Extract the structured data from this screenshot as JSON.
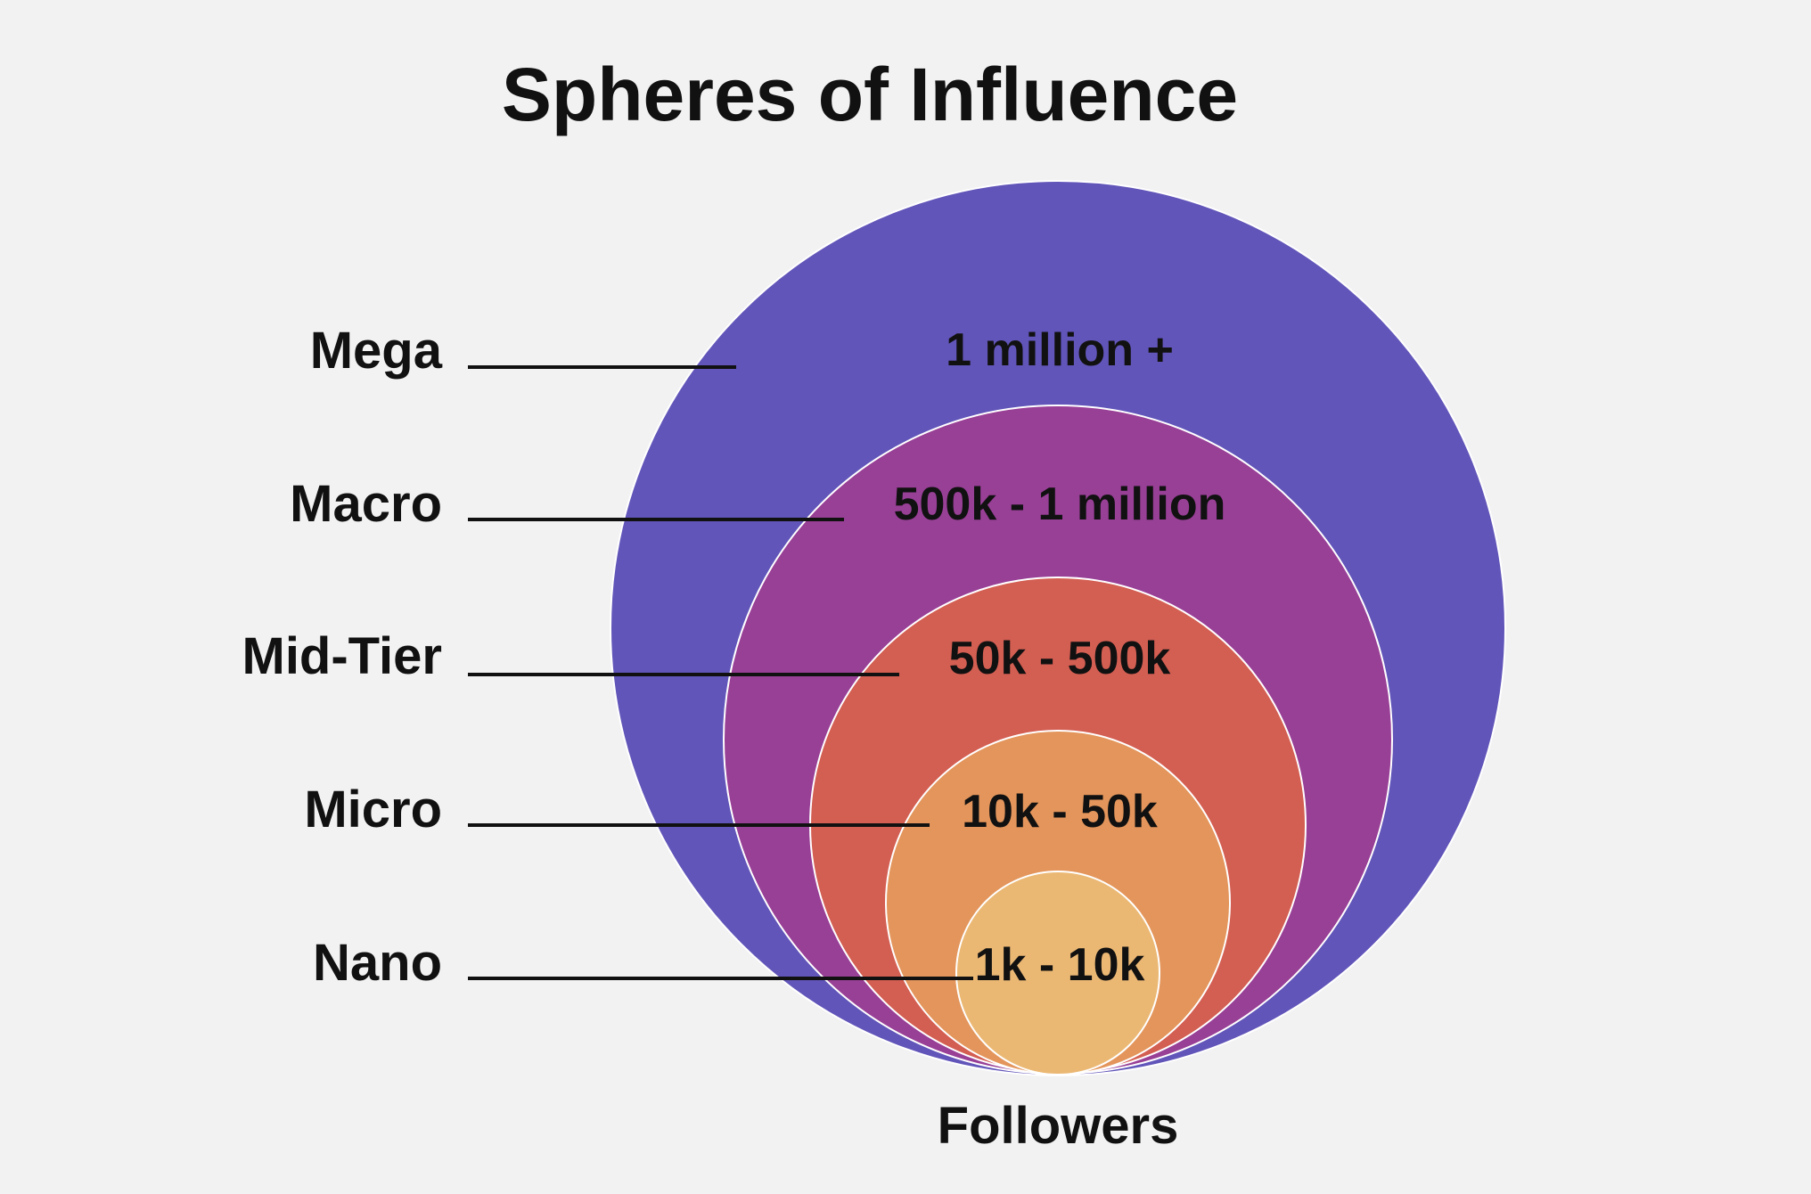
{
  "title": "Spheres of Influence",
  "footer_label": "Followers",
  "tiers": [
    {
      "name": "Mega",
      "range": "1 million +",
      "color": "#6155b9"
    },
    {
      "name": "Macro",
      "range": "500k - 1 million",
      "color": "#983f96"
    },
    {
      "name": "Mid-Tier",
      "range": "50k - 500k",
      "color": "#d35e52"
    },
    {
      "name": "Micro",
      "range": "10k - 50k",
      "color": "#e3955b"
    },
    {
      "name": "Nano",
      "range": "1k - 10k",
      "color": "#ebb874"
    }
  ]
}
